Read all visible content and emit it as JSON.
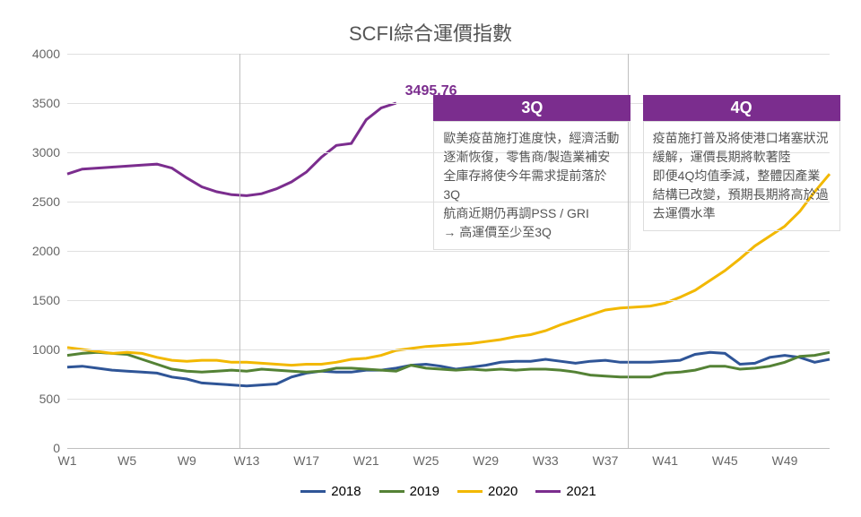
{
  "chart": {
    "title": "SCFI綜合運價指數",
    "title_color": "#595959",
    "title_fontsize": 22,
    "background_color": "#ffffff",
    "grid_color": "#e0e0e0",
    "axis_color": "#bfbfbf",
    "ylim": [
      0,
      4000
    ],
    "ytick_step": 500,
    "yticks": [
      0,
      500,
      1000,
      1500,
      2000,
      2500,
      3000,
      3500,
      4000
    ],
    "x_categories": [
      "W1",
      "W2",
      "W3",
      "W4",
      "W5",
      "W6",
      "W7",
      "W8",
      "W9",
      "W10",
      "W11",
      "W12",
      "W13",
      "W14",
      "W15",
      "W16",
      "W17",
      "W18",
      "W19",
      "W20",
      "W21",
      "W22",
      "W23",
      "W24",
      "W25",
      "W26",
      "W27",
      "W28",
      "W29",
      "W30",
      "W31",
      "W32",
      "W33",
      "W34",
      "W35",
      "W36",
      "W37",
      "W38",
      "W39",
      "W40",
      "W41",
      "W42",
      "W43",
      "W44",
      "W45",
      "W46",
      "W47",
      "W48",
      "W49",
      "W50",
      "W51",
      "W52"
    ],
    "x_labels_shown": [
      "W1",
      "W5",
      "W9",
      "W13",
      "W17",
      "W21",
      "W25",
      "W29",
      "W33",
      "W37",
      "W41",
      "W45",
      "W49"
    ],
    "line_width": 3,
    "vertical_lines_at": [
      11.5,
      37.5
    ],
    "vertical_line_color": "#bfbfbf",
    "series": [
      {
        "name": "2018",
        "color": "#2f5597",
        "values": [
          820,
          830,
          810,
          790,
          780,
          770,
          760,
          720,
          700,
          660,
          650,
          640,
          630,
          640,
          650,
          720,
          760,
          780,
          770,
          770,
          790,
          790,
          810,
          840,
          850,
          830,
          800,
          820,
          840,
          870,
          880,
          880,
          900,
          880,
          860,
          880,
          890,
          870,
          870,
          870,
          880,
          890,
          950,
          970,
          960,
          850,
          860,
          920,
          940,
          920,
          870,
          900
        ]
      },
      {
        "name": "2019",
        "color": "#548235",
        "values": [
          940,
          960,
          970,
          960,
          950,
          900,
          850,
          800,
          780,
          770,
          780,
          790,
          780,
          800,
          790,
          780,
          770,
          780,
          810,
          810,
          800,
          790,
          780,
          840,
          810,
          800,
          790,
          800,
          790,
          800,
          790,
          800,
          800,
          790,
          770,
          740,
          730,
          720,
          720,
          720,
          760,
          770,
          790,
          830,
          830,
          800,
          810,
          830,
          870,
          930,
          940,
          970
        ]
      },
      {
        "name": "2020",
        "color": "#f2b800",
        "values": [
          1020,
          1000,
          980,
          960,
          970,
          960,
          920,
          890,
          880,
          890,
          890,
          870,
          870,
          860,
          850,
          840,
          850,
          850,
          870,
          900,
          910,
          940,
          990,
          1010,
          1030,
          1040,
          1050,
          1060,
          1080,
          1100,
          1130,
          1150,
          1190,
          1250,
          1300,
          1350,
          1400,
          1420,
          1430,
          1440,
          1470,
          1530,
          1600,
          1700,
          1800,
          1920,
          2050,
          2150,
          2250,
          2400,
          2600,
          2780
        ]
      },
      {
        "name": "2021",
        "color": "#7b2d8e",
        "values": [
          2780,
          2830,
          2840,
          2850,
          2860,
          2870,
          2880,
          2840,
          2740,
          2650,
          2600,
          2570,
          2560,
          2580,
          2630,
          2700,
          2800,
          2950,
          3070,
          3090,
          3330,
          3450,
          3500
        ]
      }
    ],
    "data_label": {
      "text": "3495.76",
      "color": "#7b2d8e",
      "x_index": 22,
      "y_value": 3500,
      "dy": -22,
      "dx": 10,
      "fontsize": 16
    },
    "legend_labels": [
      "2018",
      "2019",
      "2020",
      "2021"
    ]
  },
  "annotations": [
    {
      "header": "3Q",
      "header_bg": "#7b2d8e",
      "body_lines": [
        "歐美疫苗施打進度快，經濟活動逐漸恢復，零售商/製造業補安全庫存將使今年需求提前落於3Q",
        "航商近期仍再調PSS / GRI",
        "→ 高運價至少至3Q"
      ],
      "x_index": 24.5,
      "y_top_value": 3580
    },
    {
      "header": "4Q",
      "header_bg": "#7b2d8e",
      "body_lines": [
        "疫苗施打普及將使港口堵塞狀況緩解，運價長期將軟著陸",
        "即便4Q均值季減，整體因產業結構已改變，預期長期將高於過去運價水準"
      ],
      "x_index": 38.5,
      "y_top_value": 3580
    }
  ]
}
